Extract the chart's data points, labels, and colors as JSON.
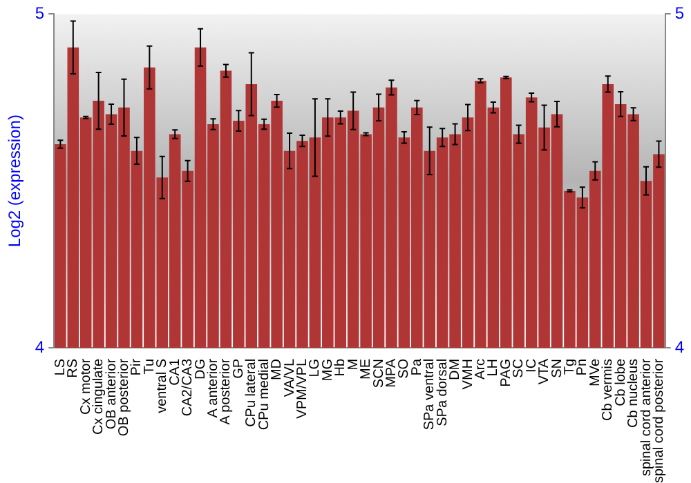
{
  "chart_data": {
    "type": "bar",
    "ylabel": "Log2 (expression)",
    "categories": [
      "LS",
      "RS",
      "Cx motor",
      "Cx cingulate",
      "OB anterior",
      "OB posterior",
      "Pir",
      "Tu",
      "ventral S",
      "CA1",
      "CA2/CA3",
      "DG",
      "A anterior",
      "A posterior",
      "GP",
      "CPu lateral",
      "CPu medial",
      "MD",
      "VA/VL",
      "VPM/VPL",
      "LG",
      "MG",
      "Hb",
      "M",
      "ME",
      "SCN",
      "MPA",
      "SO",
      "Pa",
      "SPa ventral",
      "SPa dorsal",
      "DM",
      "VMH",
      "Arc",
      "LH",
      "PAG",
      "SC",
      "IC",
      "VTA",
      "SN",
      "Tg",
      "Pn",
      "MVe",
      "Cb vermis",
      "Cb lobe",
      "Cb nucleus",
      "spinal cord anterior",
      "spinal cord posterior"
    ],
    "values": [
      4.61,
      4.9,
      4.69,
      4.74,
      4.7,
      4.72,
      4.59,
      4.84,
      4.51,
      4.64,
      4.53,
      4.9,
      4.67,
      4.83,
      4.68,
      4.79,
      4.67,
      4.74,
      4.59,
      4.62,
      4.63,
      4.69,
      4.69,
      4.71,
      4.64,
      4.72,
      4.78,
      4.63,
      4.72,
      4.59,
      4.63,
      4.64,
      4.69,
      4.8,
      4.72,
      4.81,
      4.64,
      4.75,
      4.66,
      4.7,
      4.47,
      4.45,
      4.53,
      4.79,
      4.73,
      4.7,
      4.5,
      4.58
    ],
    "errors": [
      0.012,
      0.079,
      0.003,
      0.085,
      0.03,
      0.085,
      0.04,
      0.064,
      0.063,
      0.013,
      0.031,
      0.056,
      0.016,
      0.019,
      0.031,
      0.094,
      0.015,
      0.019,
      0.053,
      0.017,
      0.116,
      0.056,
      0.019,
      0.056,
      0.004,
      0.04,
      0.022,
      0.017,
      0.021,
      0.071,
      0.027,
      0.031,
      0.039,
      0.006,
      0.016,
      0.003,
      0.027,
      0.013,
      0.067,
      0.038,
      0.003,
      0.031,
      0.027,
      0.024,
      0.037,
      0.019,
      0.042,
      0.039
    ],
    "color": "#b03535",
    "ylim": [
      4,
      5
    ],
    "yticks": [
      4,
      5
    ],
    "y2lim": [
      4,
      5
    ],
    "y2ticks": [
      4,
      5
    ],
    "legend": false
  }
}
